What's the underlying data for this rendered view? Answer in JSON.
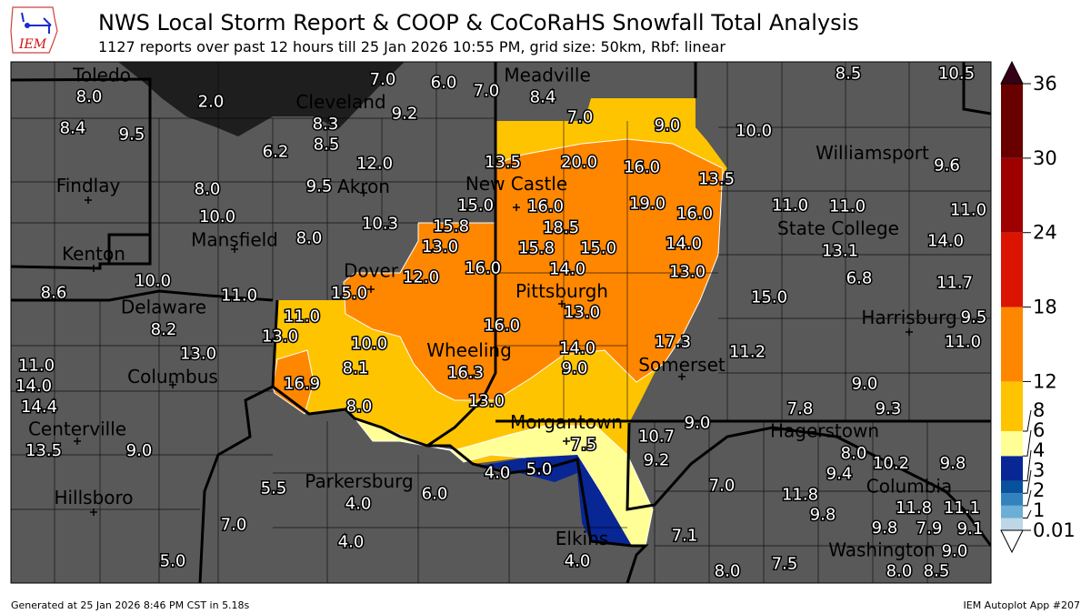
{
  "header": {
    "logo_text": "IEM",
    "title": "NWS Local Storm Report & COOP & CoCoRaHS Snowfall Total Analysis",
    "subtitle": "1127 reports over past 12 hours till 25 Jan 2026 10:55 PM, grid size: 50km, Rbf: linear"
  },
  "map": {
    "background_color": "#595959",
    "lake_color": "#1e1e1e",
    "cities": [
      "Toledo",
      "Cleveland",
      "Meadville",
      "Findlay",
      "Akron",
      "New Castle",
      "Mansfield",
      "Kenton",
      "Dover",
      "Pittsburgh",
      "Delaware",
      "Columbus",
      "Wheeling",
      "Somerset",
      "Centerville",
      "Morgantown",
      "Parkersburg",
      "Hillsboro",
      "Elkins",
      "Williamsport",
      "State College",
      "Harrisburg",
      "Hagerstown",
      "Columbia",
      "Washington"
    ],
    "snowfall_reports": [
      "8.0",
      "2.0",
      "7.0",
      "6.0",
      "7.0",
      "8.4",
      "8.3",
      "8.5",
      "9.2",
      "8.4",
      "9.5",
      "6.2",
      "7.0",
      "9.0",
      "10.0",
      "13.5",
      "20.0",
      "16.0",
      "13.5",
      "12.0",
      "9.5",
      "8.0",
      "15.0",
      "16.0",
      "19.0",
      "16.0",
      "15.8",
      "10.3",
      "10.0",
      "8.0",
      "18.5",
      "13.0",
      "15.8",
      "15.0",
      "14.0",
      "16.0",
      "12.0",
      "14.0",
      "13.0",
      "15.0",
      "13.0",
      "10.0",
      "11.0",
      "8.6",
      "11.0",
      "8.2",
      "13.0",
      "10.0",
      "16.0",
      "14.0",
      "17.3",
      "13.0",
      "8.1",
      "16.3",
      "9.0",
      "11.2",
      "11.0",
      "14.0",
      "16.9",
      "14.4",
      "8.0",
      "13.0",
      "13.5",
      "9.0",
      "7.5",
      "10.7",
      "9.0",
      "9.2",
      "4.0",
      "5.0",
      "5.5",
      "4.0",
      "6.0",
      "7.0",
      "7.0",
      "7.1",
      "4.0",
      "4.0",
      "5.0",
      "8.0",
      "7.5",
      "8.5",
      "10.5",
      "9.6",
      "11.0",
      "11.0",
      "13.1",
      "11.0",
      "14.0",
      "6.8",
      "11.7",
      "15.0",
      "9.5",
      "11.0",
      "9.0",
      "7.8",
      "9.3",
      "8.0",
      "9.4",
      "10.2",
      "11.8",
      "9.8",
      "11.8",
      "11.1",
      "9.8",
      "9.1",
      "9.8",
      "7.9",
      "9.0",
      "8.0",
      "8.5"
    ]
  },
  "colorbar": {
    "levels": [
      0.01,
      1,
      2,
      3,
      4,
      6,
      8,
      12,
      18,
      24,
      30,
      36
    ],
    "tick_labels": [
      "0.01",
      "1",
      "2",
      "3",
      "4",
      "6",
      "8",
      "12",
      "18",
      "24",
      "30",
      "36"
    ],
    "colors": [
      "#bdd7e7",
      "#6baed6",
      "#3182bd",
      "#08519c",
      "#082694",
      "#ffff96",
      "#ffc400",
      "#ff8700",
      "#db1400",
      "#9e0000",
      "#690000"
    ],
    "under_color": "#ffffff",
    "over_color": "#360016"
  },
  "footer": {
    "left": "Generated at 25 Jan 2026 8:46 PM CST in 5.18s",
    "right": "IEM Autoplot App #207"
  }
}
